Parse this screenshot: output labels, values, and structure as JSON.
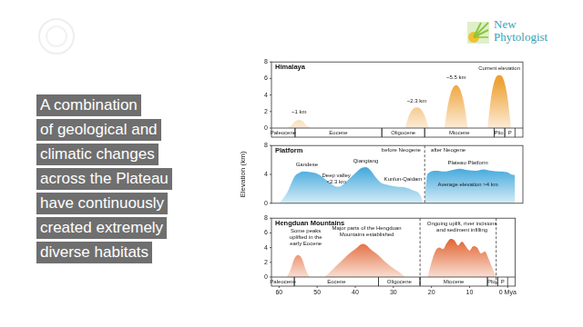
{
  "slide": {
    "text_lines": [
      "A combination",
      "of geological and",
      "climatic changes",
      "across the Plateau",
      "have continuously",
      "created extremely",
      "diverse habitats"
    ],
    "logo": [
      "New",
      "Phytologist"
    ]
  },
  "chart_data": [
    {
      "type": "area",
      "title": "Himalaya",
      "xlim": [
        62,
        -2
      ],
      "ylim": [
        0,
        8
      ],
      "yticks": [
        0,
        2,
        4,
        6,
        8
      ],
      "tick_labels": "y",
      "grid": false,
      "color": "#eea236",
      "epochs": [
        {
          "name": "Paleocene",
          "start": 66,
          "end": 56
        },
        {
          "name": "Eocene",
          "start": 56,
          "end": 33.9
        },
        {
          "name": "Oligocene",
          "start": 33.9,
          "end": 23
        },
        {
          "name": "Miocene",
          "start": 23,
          "end": 5.3
        },
        {
          "name": "Plio.",
          "start": 5.3,
          "end": 2.6
        },
        {
          "name": "P",
          "start": 2.6,
          "end": 0
        }
      ],
      "series": [
        {
          "x": [
            58,
            57,
            56,
            55,
            54,
            53,
            52
          ],
          "values": [
            0,
            0.3,
            0.8,
            1.0,
            0.8,
            0.3,
            0
          ]
        },
        {
          "x": [
            28,
            27,
            26,
            25,
            24,
            23,
            22
          ],
          "values": [
            0,
            1.5,
            2.3,
            2.5,
            2.3,
            1.5,
            0
          ]
        },
        {
          "x": [
            18,
            17,
            16,
            15,
            14,
            13,
            12
          ],
          "values": [
            0,
            3,
            4.7,
            5.2,
            4.7,
            3,
            0
          ]
        },
        {
          "x": [
            7,
            6,
            5,
            4,
            3,
            2,
            1
          ],
          "values": [
            0,
            4,
            6,
            6.4,
            6,
            4,
            0
          ]
        }
      ],
      "annotations": [
        [
          "~1 km"
        ],
        [
          "~2.3 km"
        ],
        [
          "~5.5 km"
        ],
        [
          "Current elevation"
        ]
      ]
    },
    {
      "type": "area",
      "title": "Platform",
      "ylabel": "Elevation (km)",
      "xlim": [
        62,
        -2
      ],
      "ylim": [
        0,
        8
      ],
      "yticks": [
        0,
        4,
        8
      ],
      "tick_labels": "y",
      "grid": false,
      "color": "#2f9fd8",
      "boundaries": [
        23
      ],
      "series": [
        {
          "x": [
            60,
            58,
            56,
            55,
            54,
            52,
            50,
            48,
            46,
            45,
            44,
            42,
            40,
            39,
            38,
            37,
            36,
            35,
            34,
            32,
            30,
            28,
            26,
            24,
            23.5
          ],
          "values": [
            0,
            1.5,
            3.8,
            4.2,
            4.4,
            4.3,
            4.0,
            3.2,
            2.4,
            2.3,
            2.5,
            3.5,
            4.5,
            4.9,
            5.0,
            4.7,
            4.0,
            3.3,
            2.8,
            2.5,
            2.3,
            2.2,
            1.8,
            1.0,
            0
          ]
        },
        {
          "x": [
            23,
            22.5,
            22,
            20,
            18,
            16,
            14,
            12,
            10,
            8,
            6,
            4,
            2,
            1,
            0
          ],
          "values": [
            0,
            3.5,
            4.2,
            4.5,
            4.4,
            4.6,
            4.8,
            4.6,
            4.5,
            4.7,
            4.5,
            4.4,
            4.3,
            4.0,
            3.9
          ]
        }
      ],
      "annotations": [
        [
          "Gandese"
        ],
        [
          "Deep valley",
          "<2.3 km"
        ],
        [
          "Qiangtang"
        ],
        [
          "Kunlun-Qaidam"
        ],
        [
          "before Neogene"
        ],
        [
          "after Neogene"
        ],
        [
          "Plateau Platform"
        ],
        [
          "Average elevation >4 km"
        ]
      ]
    },
    {
      "type": "area",
      "title": "Hengduan Mountains",
      "xlim": [
        62,
        -2
      ],
      "ylim": [
        0,
        8
      ],
      "yticks": [
        0,
        2,
        4,
        6,
        8
      ],
      "xticks": [
        60,
        50,
        40,
        30,
        20,
        10,
        {
          "value": 0,
          "label": "0 Mya"
        }
      ],
      "grid": false,
      "color": "#df5a25",
      "boundaries": [
        23,
        3
      ],
      "epochs": [
        {
          "name": "Paleocene",
          "start": 66,
          "end": 56
        },
        {
          "name": "Eocene",
          "start": 56,
          "end": 33.9
        },
        {
          "name": "Oligocene",
          "start": 33.9,
          "end": 23
        },
        {
          "name": "Miocene",
          "start": 23,
          "end": 5.3
        },
        {
          "name": "Plio.",
          "start": 5.3,
          "end": 2.6
        },
        {
          "name": "P",
          "start": 2.6,
          "end": 0
        }
      ],
      "series": [
        {
          "x": [
            58,
            57,
            56,
            55,
            54,
            53,
            52
          ],
          "values": [
            0,
            1,
            2.5,
            3.0,
            2.5,
            1,
            0
          ]
        },
        {
          "x": [
            48,
            46,
            44,
            42,
            40,
            38,
            37,
            36,
            34,
            32,
            30,
            28,
            27
          ],
          "values": [
            0,
            1,
            2,
            3,
            3.8,
            4.5,
            4.3,
            3.8,
            3.0,
            2.0,
            1.2,
            0.5,
            0
          ]
        },
        {
          "x": [
            21,
            20,
            19,
            18,
            17,
            16,
            15,
            14,
            13,
            12,
            11,
            10,
            9,
            8,
            7,
            6,
            5,
            4,
            3
          ],
          "values": [
            0,
            2,
            3.5,
            4,
            3.8,
            4.6,
            5.2,
            5.0,
            4.3,
            4.8,
            4.2,
            3.6,
            4.2,
            4.0,
            3.2,
            3.5,
            2.5,
            1.2,
            0
          ]
        }
      ],
      "annotations": [
        [
          "Some peaks",
          "uplifted in the",
          "early Eocene"
        ],
        [
          "Major parts of the Hengduan",
          "Mountains established"
        ],
        [
          "Ongoing uplift, river incisions",
          "and sediment infilling"
        ]
      ]
    }
  ]
}
